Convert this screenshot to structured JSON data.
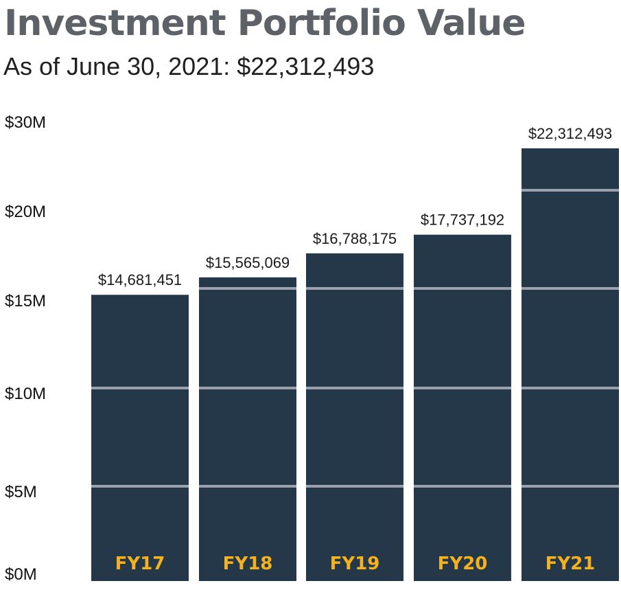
{
  "title": "Investment Portfolio Value",
  "subtitle": "As of June 30, 2021: $22,312,493",
  "colors": {
    "bar": "#24384a",
    "gridline": "#9aa0ac",
    "category_label": "#f5b21c",
    "title": "#5d6168"
  },
  "chart_data": {
    "type": "bar",
    "title": "Investment Portfolio Value",
    "subtitle": "As of June 30, 2021: $22,312,493",
    "categories": [
      "FY17",
      "FY18",
      "FY19",
      "FY20",
      "FY21"
    ],
    "values": [
      14681451,
      15565069,
      16788175,
      17737192,
      22312493
    ],
    "data_labels": [
      "$14,681,451",
      "$15,565,069",
      "$16,788,175",
      "$17,737,192",
      "$22,312,493"
    ],
    "y_ticks": [
      0,
      5000000,
      10000000,
      15000000,
      20000000,
      30000000
    ],
    "y_tick_labels": [
      "$0M",
      "$5M",
      "$10M",
      "$15M",
      "$20M",
      "$30M"
    ],
    "xlabel": "",
    "ylabel": "",
    "grid": true,
    "legend": "none"
  }
}
